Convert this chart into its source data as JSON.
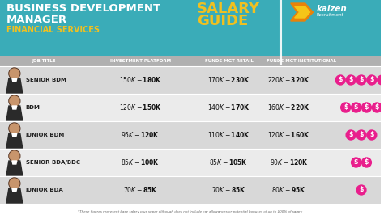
{
  "title_line1": "BUSINESS DEVELOPMENT",
  "title_line2": "MANAGER",
  "subtitle": "FINANCIAL SERVICES",
  "header_bg": "#3aacb8",
  "header_cols": [
    "JOB TITLE",
    "INVESTMENT PLATFORM",
    "FUNDS MGT RETAIL",
    "FUNDS MGT INSTITUTIONAL"
  ],
  "col_header_bg": "#b0b0b0",
  "rows": [
    {
      "title": "SENIOR BDM",
      "investment": "$150K - $180K",
      "retail": "$170K - $230K",
      "institutional": "$220K - $320K",
      "coins": 5,
      "row_bg": "#d8d8d8"
    },
    {
      "title": "BDM",
      "investment": "$120K - $150K",
      "retail": "$140K - $170K",
      "institutional": "$160K - $220K",
      "coins": 4,
      "row_bg": "#ebebeb"
    },
    {
      "title": "JUNIOR BDM",
      "investment": "$95K - $120K",
      "retail": "$110K - $140K",
      "institutional": "$120K - $160K",
      "coins": 3,
      "row_bg": "#d8d8d8"
    },
    {
      "title": "SENIOR BDA/BDC",
      "investment": "$85K - $100K",
      "retail": "$85K - $105K",
      "institutional": "$90K - $120K",
      "coins": 2,
      "row_bg": "#ebebeb"
    },
    {
      "title": "JUNIOR BDA",
      "investment": "$70K - $85K",
      "retail": "$70K - $85K",
      "institutional": "$80K - $95K",
      "coins": 1,
      "row_bg": "#d8d8d8"
    }
  ],
  "footnote": "*These figures represent base salary plus super although does not include car allowances or potential bonuses of up to 100% of salary",
  "coin_color": "#e91e8c",
  "yellow": "#f0c020",
  "kaizen_orange": "#f0a020",
  "teal": "#3aacb8",
  "white": "#ffffff",
  "col_text": "#555555",
  "row_text": "#222222",
  "salary_text": "#111111"
}
